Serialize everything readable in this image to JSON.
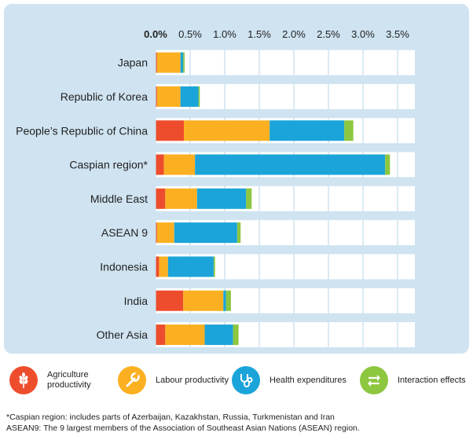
{
  "chart_data": {
    "type": "bar",
    "orientation": "horizontal",
    "stacked": true,
    "categories": [
      "Japan",
      "Republic of Korea",
      "People’s Republic of China",
      "Caspian region*",
      "Middle East",
      "ASEAN 9",
      "Indonesia",
      "India",
      "Other Asia"
    ],
    "series": [
      {
        "name": "Agriculture productivity",
        "color": "#ee4d2d",
        "values": [
          0.02,
          0.02,
          0.41,
          0.12,
          0.14,
          0.02,
          0.05,
          0.4,
          0.14
        ]
      },
      {
        "name": "Labour productivity",
        "color": "#fbb021",
        "values": [
          0.34,
          0.34,
          1.24,
          0.45,
          0.46,
          0.25,
          0.13,
          0.58,
          0.57
        ]
      },
      {
        "name": "Health expenditures",
        "color": "#1ba4d9",
        "values": [
          0.04,
          0.26,
          1.08,
          2.75,
          0.71,
          0.91,
          0.66,
          0.04,
          0.41
        ]
      },
      {
        "name": "Interaction effects",
        "color": "#8dc63f",
        "values": [
          0.02,
          0.02,
          0.13,
          0.07,
          0.08,
          0.05,
          0.02,
          0.07,
          0.08
        ]
      }
    ],
    "xlim": [
      0,
      3.75
    ],
    "xticks": [
      "0.0%",
      "0.5%",
      "1.0%",
      "1.5%",
      "2.0%",
      "2.5%",
      "3.0%",
      "3.5%"
    ],
    "grid": true,
    "legend_position": "bottom"
  },
  "legend": {
    "items": [
      {
        "label_line1": "Agriculture",
        "label_line2": "productivity",
        "icon": "wheat-icon",
        "color": "#ee4d2d"
      },
      {
        "label_line1": "Labour productivity",
        "label_line2": "",
        "icon": "wrench-icon",
        "color": "#fbb021"
      },
      {
        "label_line1": "Health expenditures",
        "label_line2": "",
        "icon": "stethoscope-icon",
        "color": "#1ba4d9"
      },
      {
        "label_line1": "Interaction effects",
        "label_line2": "",
        "icon": "swap-arrows-icon",
        "color": "#8dc63f"
      }
    ]
  },
  "footnotes": {
    "caspian": "*Caspian region: includes parts of Azerbaijan, Kazakhstan, Russia, Turkmenistan and Iran",
    "asean": "ASEAN9: The 9 largest members of the Association of Southeast Asian Nations (ASEAN) region."
  }
}
